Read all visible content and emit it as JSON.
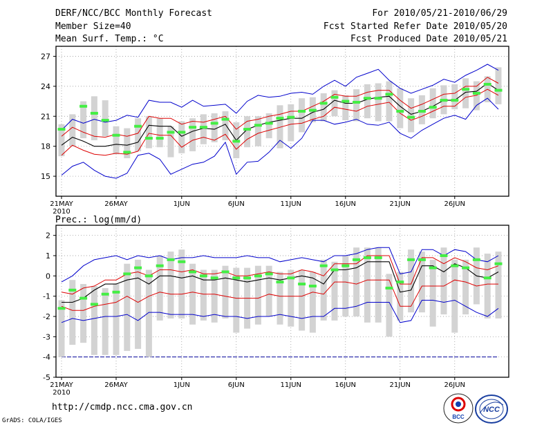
{
  "header": {
    "title": "DERF/NCC/BCC Monthly Forecast",
    "member_size": "Member Size=40",
    "variable": "Mean Surf. Temp.: °C",
    "period": "For 2010/05/21-2010/06/29",
    "fcst_started": "Fcst Started Refer Date 2010/05/20",
    "fcst_produced": "Fcst Produced Date 2010/05/21"
  },
  "footer": {
    "url": "http://cmdp.ncc.cma.gov.cn",
    "software": "GrADS: COLA/IGES",
    "logo_bcc": "BCC",
    "logo_ncc": "NCC"
  },
  "colors": {
    "max_min": "#0000cc",
    "std_band": "#dd0000",
    "mean": "#000000",
    "box": "#d3d3d3",
    "median": "#44ee44",
    "ref_line": "#000099"
  },
  "chart_data": [
    {
      "id": "temperature",
      "type": "line",
      "title": "Mean Surf. Temp.: °C",
      "xlabel": "",
      "ylabel": "°C",
      "ylim": [
        13,
        28
      ],
      "yticks": [
        15,
        18,
        21,
        24,
        27
      ],
      "x_day_range": [
        0,
        40
      ],
      "x_ticks": [
        {
          "day": 0,
          "label": "21MAY",
          "sublabel": "2010"
        },
        {
          "day": 5,
          "label": "26MAY"
        },
        {
          "day": 11,
          "label": "1JUN"
        },
        {
          "day": 16,
          "label": "6JUN"
        },
        {
          "day": 21,
          "label": "11JUN"
        },
        {
          "day": 26,
          "label": "16JUN"
        },
        {
          "day": 31,
          "label": "21JUN"
        },
        {
          "day": 36,
          "label": "26JUN"
        }
      ],
      "grid": true,
      "series": [
        {
          "name": "max",
          "values": [
            19.6,
            20.7,
            20.3,
            20.7,
            20.4,
            20.6,
            21.1,
            20.9,
            22.6,
            22.4,
            22.4,
            21.9,
            22.6,
            22.0,
            22.1,
            22.2,
            21.3,
            22.5,
            23.1,
            22.9,
            23.0,
            23.3,
            23.4,
            23.2,
            24.0,
            24.6,
            24.0,
            24.9,
            25.3,
            25.7,
            24.6,
            23.8,
            23.3,
            23.7,
            24.1,
            24.7,
            24.4,
            25.1,
            25.6,
            26.2,
            25.6
          ]
        },
        {
          "name": "upper",
          "values": [
            19.0,
            19.9,
            19.4,
            19.0,
            18.9,
            19.2,
            19.0,
            19.3,
            21.0,
            20.8,
            20.8,
            20.2,
            20.5,
            20.4,
            20.7,
            21.0,
            19.7,
            20.5,
            20.7,
            21.0,
            21.2,
            21.5,
            21.5,
            22.0,
            22.5,
            23.2,
            23.0,
            23.0,
            23.4,
            23.6,
            23.6,
            22.6,
            21.8,
            22.2,
            22.7,
            23.2,
            23.3,
            24.0,
            24.0,
            24.9,
            24.3
          ]
        },
        {
          "name": "mean",
          "values": [
            18.1,
            18.9,
            18.5,
            18.0,
            18.0,
            18.2,
            18.1,
            18.4,
            20.1,
            20.0,
            20.0,
            19.0,
            19.5,
            19.8,
            19.7,
            20.2,
            18.6,
            19.7,
            20.1,
            20.4,
            20.6,
            20.8,
            20.8,
            21.4,
            21.7,
            22.6,
            22.3,
            22.3,
            22.7,
            22.9,
            23.0,
            22.0,
            21.2,
            21.5,
            22.0,
            22.6,
            22.6,
            23.4,
            23.5,
            24.3,
            23.6
          ]
        },
        {
          "name": "lower",
          "values": [
            17.1,
            18.1,
            17.6,
            17.2,
            17.1,
            17.3,
            17.2,
            17.5,
            19.3,
            19.1,
            19.1,
            17.9,
            18.6,
            18.9,
            18.6,
            19.2,
            17.7,
            18.7,
            19.3,
            19.6,
            19.9,
            20.2,
            20.3,
            20.7,
            21.0,
            21.9,
            21.7,
            21.5,
            22.0,
            22.2,
            22.4,
            21.3,
            20.6,
            21.0,
            21.5,
            22.0,
            22.0,
            22.9,
            23.1,
            23.7,
            23.1
          ]
        },
        {
          "name": "min",
          "values": [
            15.1,
            16.0,
            16.4,
            15.6,
            15.0,
            14.8,
            15.3,
            17.1,
            17.3,
            16.7,
            15.2,
            15.7,
            16.2,
            16.4,
            17.0,
            18.4,
            15.2,
            16.4,
            16.5,
            17.4,
            18.6,
            17.8,
            18.8,
            20.6,
            20.6,
            20.2,
            20.4,
            20.7,
            20.2,
            20.1,
            20.4,
            19.3,
            18.8,
            19.6,
            20.2,
            20.8,
            21.1,
            20.7,
            22.1,
            22.8,
            21.7
          ]
        },
        {
          "name": "median",
          "values": [
            19.7,
            null,
            22.0,
            21.3,
            20.6,
            19.1,
            17.4,
            20.0,
            18.8,
            18.8,
            19.4,
            19.4,
            19.9,
            19.9,
            20.3,
            20.7,
            18.5,
            19.7,
            20.1,
            20.3,
            20.8,
            20.9,
            21.5,
            21.6,
            22.3,
            22.9,
            22.5,
            22.4,
            22.8,
            22.8,
            23.2,
            21.5,
            20.9,
            21.5,
            21.9,
            22.6,
            22.6,
            23.7,
            23.3,
            24.2,
            23.6
          ]
        }
      ],
      "boxes": [
        {
          "low": 17.0,
          "high": 20.2
        },
        {
          "low": 18.0,
          "high": 21.2
        },
        {
          "low": 18.8,
          "high": 22.5
        },
        {
          "low": 18.6,
          "high": 23.0
        },
        {
          "low": 19.0,
          "high": 22.6
        },
        {
          "low": 17.2,
          "high": 20.0
        },
        {
          "low": 16.8,
          "high": 19.8
        },
        {
          "low": 17.5,
          "high": 20.8
        },
        {
          "low": 17.8,
          "high": 21.0
        },
        {
          "low": 17.9,
          "high": 20.8
        },
        {
          "low": 16.9,
          "high": 20.0
        },
        {
          "low": 17.3,
          "high": 20.5
        },
        {
          "low": 17.5,
          "high": 20.8
        },
        {
          "low": 18.2,
          "high": 21.2
        },
        {
          "low": 18.4,
          "high": 21.3
        },
        {
          "low": 18.6,
          "high": 21.5
        },
        {
          "low": 16.8,
          "high": 20.4
        },
        {
          "low": 17.9,
          "high": 21.0
        },
        {
          "low": 18.0,
          "high": 21.0
        },
        {
          "low": 18.8,
          "high": 21.3
        },
        {
          "low": 17.8,
          "high": 22.1
        },
        {
          "low": 18.5,
          "high": 22.2
        },
        {
          "low": 19.4,
          "high": 22.8
        },
        {
          "low": 20.4,
          "high": 22.9
        },
        {
          "low": 20.5,
          "high": 23.3
        },
        {
          "low": 21.0,
          "high": 23.6
        },
        {
          "low": 20.6,
          "high": 23.1
        },
        {
          "low": 20.5,
          "high": 23.7
        },
        {
          "low": 20.8,
          "high": 24.2
        },
        {
          "low": 20.5,
          "high": 24.3
        },
        {
          "low": 20.5,
          "high": 24.5
        },
        {
          "low": 19.8,
          "high": 23.8
        },
        {
          "low": 19.4,
          "high": 22.8
        },
        {
          "low": 20.2,
          "high": 23.1
        },
        {
          "low": 20.8,
          "high": 23.8
        },
        {
          "low": 21.2,
          "high": 24.1
        },
        {
          "low": 21.7,
          "high": 24.2
        },
        {
          "low": 21.8,
          "high": 24.8
        },
        {
          "low": 21.6,
          "high": 24.5
        },
        {
          "low": 22.4,
          "high": 25.0
        },
        {
          "low": 22.2,
          "high": 25.9
        }
      ]
    },
    {
      "id": "precipitation",
      "type": "line",
      "title": "Prec.: log(mm/d)",
      "xlabel": "",
      "ylabel": "log(mm/d)",
      "ylim": [
        -5,
        2.5
      ],
      "yticks": [
        -5,
        -4,
        -3,
        -2,
        -1,
        0,
        1,
        2
      ],
      "x_day_range": [
        0,
        40
      ],
      "x_ticks": [
        {
          "day": 0,
          "label": "21MAY",
          "sublabel": "2010"
        },
        {
          "day": 5,
          "label": "26MAY"
        },
        {
          "day": 11,
          "label": "1JUN"
        },
        {
          "day": 16,
          "label": "6JUN"
        },
        {
          "day": 21,
          "label": "11JUN"
        },
        {
          "day": 26,
          "label": "16JUN"
        },
        {
          "day": 31,
          "label": "21JUN"
        },
        {
          "day": 36,
          "label": "26JUN"
        }
      ],
      "grid": true,
      "reference_line": -4,
      "series": [
        {
          "name": "max",
          "values": [
            -0.3,
            0.0,
            0.5,
            0.8,
            0.9,
            1.0,
            0.8,
            1.0,
            0.9,
            1.0,
            0.8,
            0.9,
            0.9,
            1.0,
            0.9,
            0.9,
            0.9,
            1.0,
            0.9,
            0.9,
            0.7,
            0.8,
            0.9,
            0.8,
            0.7,
            1.0,
            1.0,
            1.1,
            1.3,
            1.4,
            1.4,
            0.1,
            0.2,
            1.3,
            1.3,
            1.0,
            1.3,
            1.2,
            0.8,
            0.7,
            1.0
          ]
        },
        {
          "name": "upper",
          "values": [
            -0.8,
            -0.9,
            -0.6,
            -0.5,
            -0.2,
            -0.2,
            0.1,
            0.2,
            0.0,
            0.3,
            0.3,
            0.2,
            0.3,
            0.1,
            0.1,
            0.2,
            0.0,
            0.0,
            0.1,
            0.2,
            0.1,
            0.1,
            0.3,
            0.2,
            0.0,
            0.6,
            0.6,
            0.6,
            1.0,
            1.0,
            1.0,
            -0.4,
            -0.4,
            0.9,
            0.9,
            0.6,
            0.9,
            0.7,
            0.4,
            0.3,
            0.5
          ]
        },
        {
          "name": "mean",
          "values": [
            -1.3,
            -1.3,
            -1.1,
            -0.7,
            -0.4,
            -0.4,
            -0.2,
            -0.1,
            -0.4,
            0.0,
            0.0,
            -0.1,
            0.0,
            -0.2,
            -0.2,
            -0.1,
            -0.2,
            -0.3,
            -0.2,
            -0.1,
            -0.2,
            -0.1,
            0.0,
            -0.1,
            -0.4,
            0.3,
            0.3,
            0.4,
            0.7,
            0.7,
            0.7,
            -0.8,
            -0.7,
            0.5,
            0.5,
            0.2,
            0.6,
            0.4,
            0.0,
            -0.1,
            0.2
          ]
        },
        {
          "name": "lower",
          "values": [
            -1.5,
            -1.7,
            -1.7,
            -1.5,
            -1.4,
            -1.3,
            -1.0,
            -1.3,
            -1.0,
            -0.8,
            -0.9,
            -0.9,
            -0.8,
            -0.9,
            -0.9,
            -1.0,
            -1.1,
            -1.1,
            -1.1,
            -0.9,
            -1.0,
            -1.0,
            -1.0,
            -0.8,
            -0.9,
            -0.3,
            -0.3,
            -0.4,
            -0.2,
            -0.2,
            -0.2,
            -1.5,
            -1.5,
            -0.5,
            -0.5,
            -0.5,
            -0.2,
            -0.3,
            -0.5,
            -0.4,
            -0.4
          ]
        },
        {
          "name": "min",
          "values": [
            -2.3,
            -2.1,
            -2.2,
            -2.1,
            -2.0,
            -2.0,
            -1.9,
            -2.2,
            -1.8,
            -1.8,
            -1.9,
            -1.9,
            -1.9,
            -2.0,
            -1.9,
            -2.0,
            -2.0,
            -2.1,
            -2.0,
            -2.0,
            -1.9,
            -2.0,
            -2.1,
            -2.0,
            -2.0,
            -1.6,
            -1.6,
            -1.5,
            -1.3,
            -1.3,
            -1.3,
            -2.3,
            -2.2,
            -1.2,
            -1.2,
            -1.3,
            -1.2,
            -1.5,
            -1.8,
            -2.0,
            -1.6
          ]
        },
        {
          "name": "median",
          "values": [
            -1.6,
            -0.7,
            -1.1,
            -1.4,
            -0.9,
            -0.8,
            0.1,
            0.4,
            0.0,
            0.5,
            0.8,
            0.7,
            0.2,
            0.0,
            -0.1,
            0.2,
            -0.1,
            -0.1,
            0.0,
            0.1,
            -0.3,
            -0.1,
            -0.4,
            -0.5,
            0.5,
            0.3,
            0.5,
            0.8,
            0.9,
            0.9,
            -0.6,
            -0.3,
            0.8,
            0.8,
            0.4,
            1.0,
            0.5,
            0.4,
            0.8,
            -0.1,
            0.6
          ]
        }
      ],
      "boxes": [
        {
          "low": -4.0,
          "high": -1.2
        },
        {
          "low": -3.4,
          "high": -0.2
        },
        {
          "low": -3.3,
          "high": -0.4
        },
        {
          "low": -3.9,
          "high": -0.5
        },
        {
          "low": -3.9,
          "high": -0.6
        },
        {
          "low": -3.9,
          "high": -0.4
        },
        {
          "low": -3.7,
          "high": 0.6
        },
        {
          "low": -3.6,
          "high": 0.8
        },
        {
          "low": -4.0,
          "high": 0.3
        },
        {
          "low": -2.2,
          "high": 1.0
        },
        {
          "low": -2.1,
          "high": 1.2
        },
        {
          "low": -2.1,
          "high": 1.3
        },
        {
          "low": -2.4,
          "high": 0.6
        },
        {
          "low": -2.2,
          "high": 0.3
        },
        {
          "low": -2.3,
          "high": 0.3
        },
        {
          "low": -2.1,
          "high": 0.5
        },
        {
          "low": -2.8,
          "high": 0.4
        },
        {
          "low": -2.6,
          "high": 0.4
        },
        {
          "low": -2.4,
          "high": 0.5
        },
        {
          "low": -2.0,
          "high": 0.5
        },
        {
          "low": -2.4,
          "high": 0.2
        },
        {
          "low": -2.5,
          "high": 0.3
        },
        {
          "low": -2.7,
          "high": 0.3
        },
        {
          "low": -2.8,
          "high": 0.2
        },
        {
          "low": -2.2,
          "high": 0.8
        },
        {
          "low": -2.2,
          "high": 0.7
        },
        {
          "low": -2.0,
          "high": 1.0
        },
        {
          "low": -2.0,
          "high": 1.4
        },
        {
          "low": -2.3,
          "high": 1.4
        },
        {
          "low": -2.3,
          "high": 1.4
        },
        {
          "low": -3.0,
          "high": 0.1
        },
        {
          "low": -2.2,
          "high": 0.2
        },
        {
          "low": -1.8,
          "high": 1.3
        },
        {
          "low": -1.8,
          "high": 1.2
        },
        {
          "low": -2.5,
          "high": 0.8
        },
        {
          "low": -1.9,
          "high": 1.4
        },
        {
          "low": -2.8,
          "high": 0.8
        },
        {
          "low": -1.9,
          "high": 0.8
        },
        {
          "low": -1.4,
          "high": 1.4
        },
        {
          "low": -2.1,
          "high": 1.1
        },
        {
          "low": -2.1,
          "high": 1.2
        }
      ]
    }
  ]
}
